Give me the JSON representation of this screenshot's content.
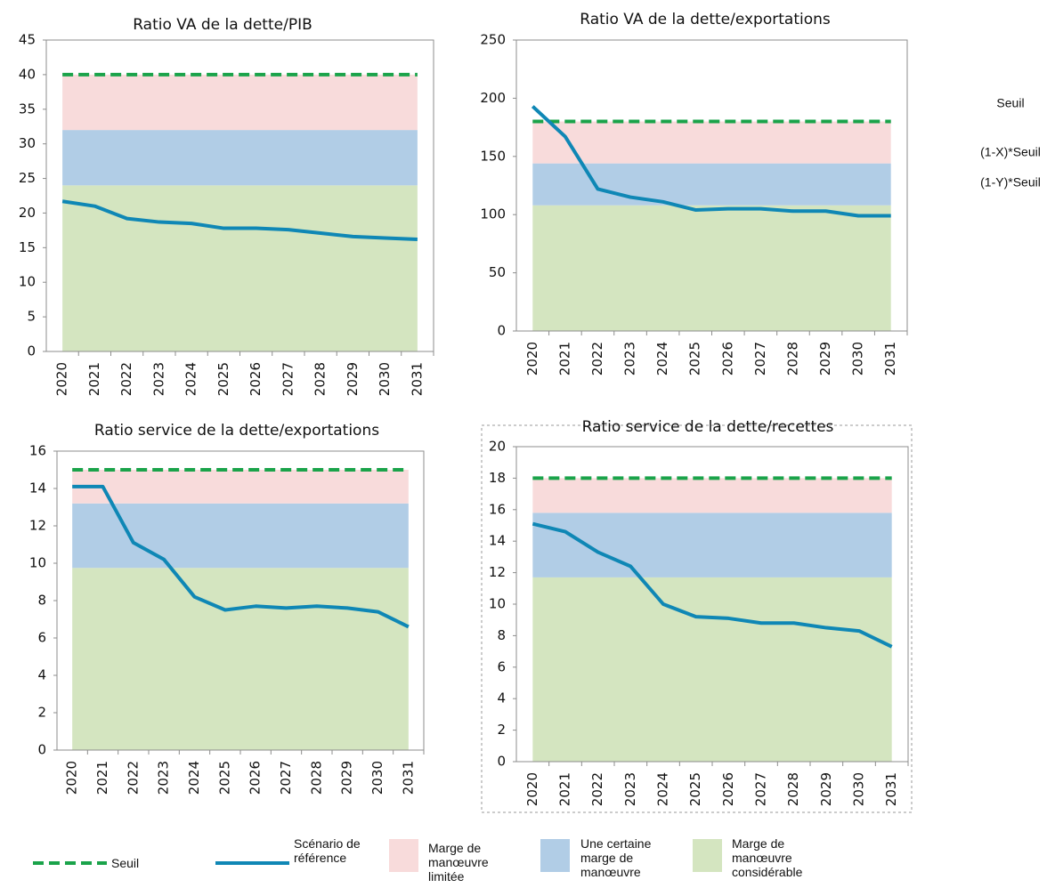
{
  "side_labels": [
    "Seuil",
    "(1-X)*Seuil",
    "(1-Y)*Seuil"
  ],
  "legend": [
    {
      "name": "Seuil",
      "color": "#1aa34a"
    },
    {
      "name": "Scénario de référence",
      "color": "#0f87b5"
    },
    {
      "name": "Marge de manœuvre limitée",
      "color": "#f8dbdb"
    },
    {
      "name": "Une certaine marge de manœuvre",
      "color": "#b1cde6"
    },
    {
      "name": "Marge de manœuvre considérable",
      "color": "#d4e5c0"
    }
  ],
  "chart_data": [
    {
      "type": "line",
      "title": "Ratio VA de la dette/PIB",
      "categories": [
        "2020",
        "2021",
        "2022",
        "2023",
        "2024",
        "2025",
        "2026",
        "2027",
        "2028",
        "2029",
        "2030",
        "2031"
      ],
      "values": [
        21.7,
        21.0,
        19.2,
        18.7,
        18.5,
        17.8,
        17.8,
        17.6,
        17.1,
        16.6,
        16.4,
        16.2
      ],
      "threshold": 40,
      "band_tops": [
        24,
        32
      ],
      "ylim": [
        0,
        45
      ],
      "yticks": [
        0,
        5,
        10,
        15,
        20,
        25,
        30,
        35,
        40,
        45
      ]
    },
    {
      "type": "line",
      "title": "Ratio VA de la dette/exportations",
      "categories": [
        "2020",
        "2021",
        "2022",
        "2023",
        "2024",
        "2025",
        "2026",
        "2027",
        "2028",
        "2029",
        "2030",
        "2031"
      ],
      "values": [
        193,
        167,
        122,
        115,
        111,
        104,
        105,
        105,
        103,
        103,
        99,
        99
      ],
      "threshold": 180,
      "band_tops": [
        108,
        144
      ],
      "ylim": [
        0,
        250
      ],
      "yticks": [
        0,
        50,
        100,
        150,
        200,
        250
      ]
    },
    {
      "type": "line",
      "title": "Ratio service de la dette/exportations",
      "categories": [
        "2020",
        "2021",
        "2022",
        "2023",
        "2024",
        "2025",
        "2026",
        "2027",
        "2028",
        "2029",
        "2030",
        "2031"
      ],
      "values": [
        14.1,
        14.1,
        11.1,
        10.2,
        8.2,
        7.5,
        7.7,
        7.6,
        7.7,
        7.6,
        7.4,
        6.6
      ],
      "threshold": 15,
      "band_tops": [
        9.75,
        13.2
      ],
      "ylim": [
        0,
        16
      ],
      "yticks": [
        0,
        2,
        4,
        6,
        8,
        10,
        12,
        14,
        16
      ]
    },
    {
      "type": "line",
      "title": "Ratio service de la dette/recettes",
      "categories": [
        "2020",
        "2021",
        "2022",
        "2023",
        "2024",
        "2025",
        "2026",
        "2027",
        "2028",
        "2029",
        "2030",
        "2031"
      ],
      "values": [
        15.1,
        14.6,
        13.3,
        12.4,
        10.0,
        9.2,
        9.1,
        8.8,
        8.8,
        8.5,
        8.3,
        7.3
      ],
      "threshold": 18,
      "band_tops": [
        11.7,
        15.8
      ],
      "ylim": [
        0,
        20
      ],
      "yticks": [
        0,
        2,
        4,
        6,
        8,
        10,
        12,
        14,
        16,
        18,
        20
      ]
    }
  ]
}
